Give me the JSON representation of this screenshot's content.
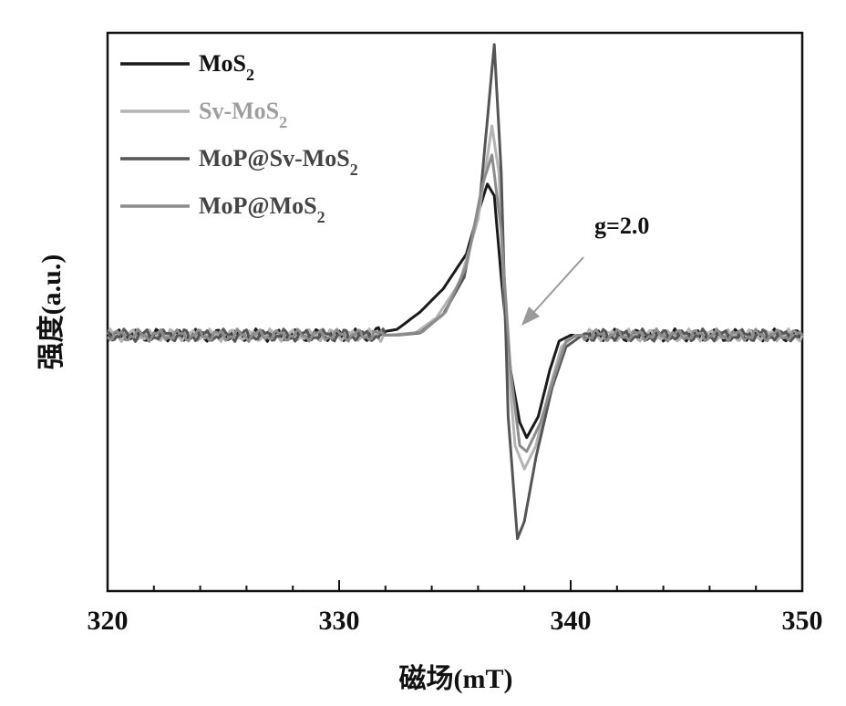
{
  "chart_data": {
    "type": "line",
    "title": "",
    "xlabel": "磁场(mT)",
    "ylabel": "强度(a.u.)",
    "xlim": [
      320,
      350
    ],
    "ylim": [
      -2.2,
      2.6
    ],
    "x_ticks": [
      "320",
      "330",
      "340",
      "350"
    ],
    "y_ticks_labeled": false,
    "legend_position": "top-left",
    "annotation": {
      "text": "g=2.0",
      "points_to_x": 337.8
    },
    "series": [
      {
        "name": "MoS2",
        "color": "#1a1a1a",
        "points": [
          [
            320,
            0
          ],
          [
            331,
            0
          ],
          [
            332.5,
            0.05
          ],
          [
            333.5,
            0.2
          ],
          [
            334.5,
            0.4
          ],
          [
            335.5,
            0.7
          ],
          [
            336.0,
            1.05
          ],
          [
            336.4,
            1.3
          ],
          [
            336.7,
            1.2
          ],
          [
            337.0,
            0.5
          ],
          [
            337.4,
            -0.3
          ],
          [
            337.8,
            -0.75
          ],
          [
            338.1,
            -0.88
          ],
          [
            338.6,
            -0.7
          ],
          [
            339.1,
            -0.3
          ],
          [
            339.5,
            -0.05
          ],
          [
            340,
            0
          ],
          [
            350,
            0
          ]
        ]
      },
      {
        "name": "Sv-MoS2",
        "color": "#b3b3b3",
        "points": [
          [
            320,
            0
          ],
          [
            332,
            0
          ],
          [
            333.3,
            0.02
          ],
          [
            334.2,
            0.15
          ],
          [
            335.2,
            0.45
          ],
          [
            336.0,
            1.0
          ],
          [
            336.6,
            1.8
          ],
          [
            336.9,
            1.4
          ],
          [
            337.2,
            0.0
          ],
          [
            337.6,
            -0.95
          ],
          [
            338.0,
            -1.15
          ],
          [
            338.5,
            -0.95
          ],
          [
            339.1,
            -0.45
          ],
          [
            339.6,
            -0.1
          ],
          [
            340.2,
            0
          ],
          [
            350,
            0
          ]
        ]
      },
      {
        "name": "MoP@Sv-MoS2",
        "color": "#555555",
        "points": [
          [
            320,
            0
          ],
          [
            332.5,
            0
          ],
          [
            333.5,
            0.02
          ],
          [
            334.5,
            0.18
          ],
          [
            335.4,
            0.5
          ],
          [
            336.1,
            1.2
          ],
          [
            336.7,
            2.5
          ],
          [
            337.0,
            1.4
          ],
          [
            337.3,
            -0.7
          ],
          [
            337.7,
            -1.75
          ],
          [
            338.0,
            -1.6
          ],
          [
            338.5,
            -1.05
          ],
          [
            339.2,
            -0.45
          ],
          [
            339.8,
            -0.1
          ],
          [
            340.5,
            0
          ],
          [
            350,
            0
          ]
        ]
      },
      {
        "name": "MoP@MoS2",
        "color": "#8c8c8c",
        "points": [
          [
            320,
            0
          ],
          [
            332.5,
            0
          ],
          [
            333.6,
            0.03
          ],
          [
            334.6,
            0.2
          ],
          [
            335.5,
            0.6
          ],
          [
            336.2,
            1.3
          ],
          [
            336.6,
            1.55
          ],
          [
            337.0,
            0.9
          ],
          [
            337.4,
            -0.3
          ],
          [
            337.8,
            -0.95
          ],
          [
            338.1,
            -1.0
          ],
          [
            338.7,
            -0.75
          ],
          [
            339.3,
            -0.35
          ],
          [
            339.8,
            -0.05
          ],
          [
            340.3,
            0
          ],
          [
            350,
            0
          ]
        ]
      }
    ]
  }
}
